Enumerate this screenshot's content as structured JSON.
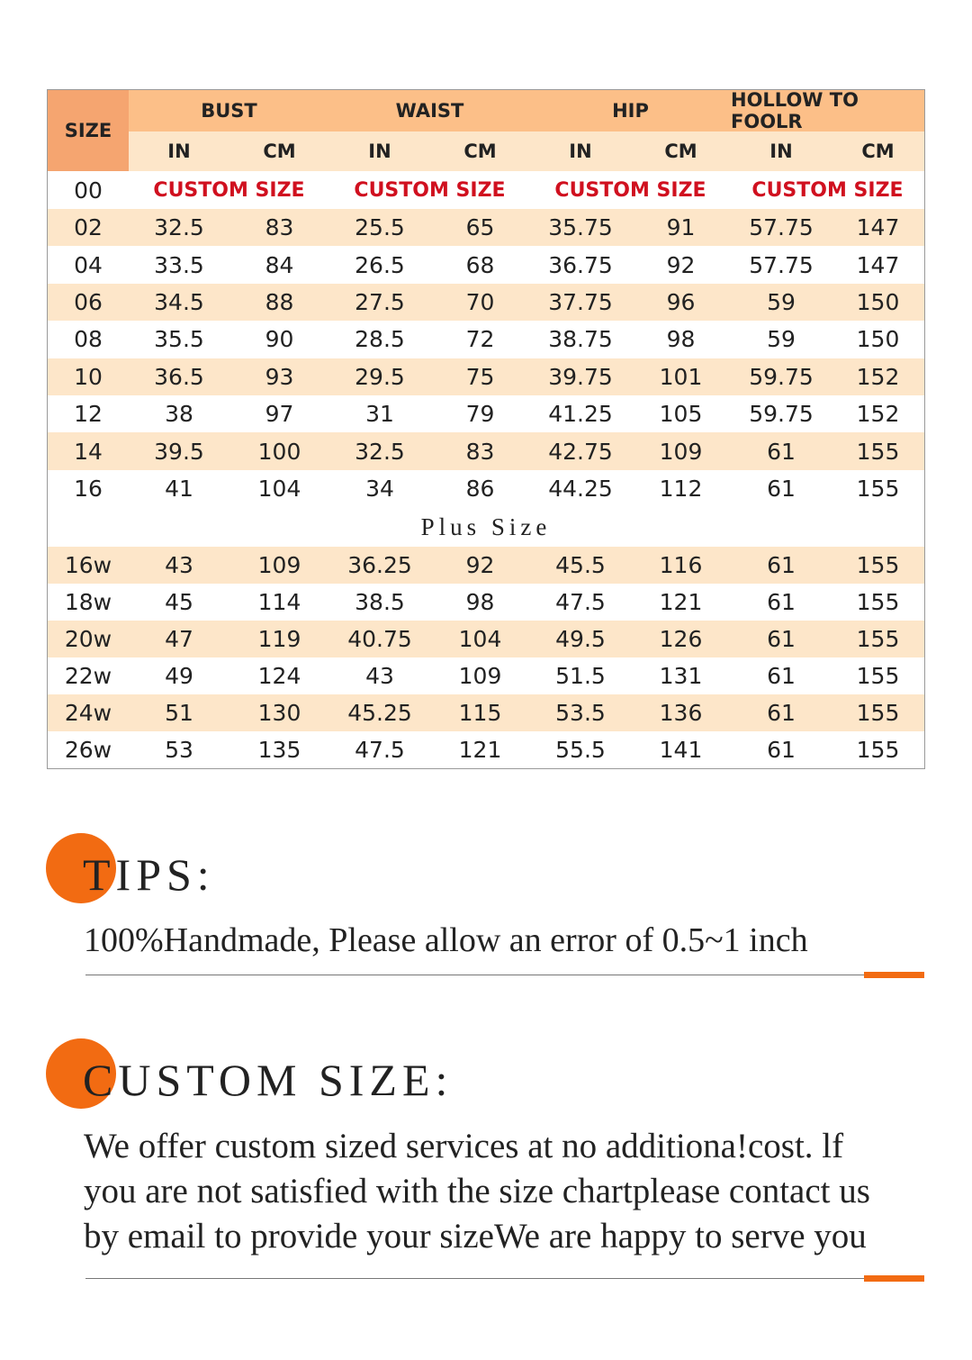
{
  "table": {
    "size_header": "SIZE",
    "group_headers": [
      "BUST",
      "WAIST",
      "HIP",
      "HOLLOW TO FOOLR"
    ],
    "sub_headers": [
      "IN",
      "CM",
      "IN",
      "CM",
      "IN",
      "CM",
      "IN",
      "CM"
    ],
    "custom_row": {
      "size": "00",
      "cells": [
        "CUSTOM SIZE",
        "CUSTOM SIZE",
        "CUSTOM SIZE",
        "CUSTOM SIZE"
      ]
    },
    "regular_rows": [
      [
        "02",
        "32.5",
        "83",
        "25.5",
        "65",
        "35.75",
        "91",
        "57.75",
        "147"
      ],
      [
        "04",
        "33.5",
        "84",
        "26.5",
        "68",
        "36.75",
        "92",
        "57.75",
        "147"
      ],
      [
        "06",
        "34.5",
        "88",
        "27.5",
        "70",
        "37.75",
        "96",
        "59",
        "150"
      ],
      [
        "08",
        "35.5",
        "90",
        "28.5",
        "72",
        "38.75",
        "98",
        "59",
        "150"
      ],
      [
        "10",
        "36.5",
        "93",
        "29.5",
        "75",
        "39.75",
        "101",
        "59.75",
        "152"
      ],
      [
        "12",
        "38",
        "97",
        "31",
        "79",
        "41.25",
        "105",
        "59.75",
        "152"
      ],
      [
        "14",
        "39.5",
        "100",
        "32.5",
        "83",
        "42.75",
        "109",
        "61",
        "155"
      ],
      [
        "16",
        "41",
        "104",
        "34",
        "86",
        "44.25",
        "112",
        "61",
        "155"
      ]
    ],
    "plus_divider": "Plus Size",
    "plus_rows": [
      [
        "16w",
        "43",
        "109",
        "36.25",
        "92",
        "45.5",
        "116",
        "61",
        "155"
      ],
      [
        "18w",
        "45",
        "114",
        "38.5",
        "98",
        "47.5",
        "121",
        "61",
        "155"
      ],
      [
        "20w",
        "47",
        "119",
        "40.75",
        "104",
        "49.5",
        "126",
        "61",
        "155"
      ],
      [
        "22w",
        "49",
        "124",
        "43",
        "109",
        "51.5",
        "131",
        "61",
        "155"
      ],
      [
        "24w",
        "51",
        "130",
        "45.25",
        "115",
        "53.5",
        "136",
        "61",
        "155"
      ],
      [
        "26w",
        "53",
        "135",
        "47.5",
        "121",
        "55.5",
        "141",
        "61",
        "155"
      ]
    ]
  },
  "tips": {
    "title": "TIPS:",
    "text": "100%Handmade, Please allow an error of 0.5~1 inch"
  },
  "custom_size": {
    "title": "CUSTOM SIZE:",
    "lines": [
      "We offer custom sized services at no additiona!cost. lf",
      "you are not satisfied with the size chartplease contact us",
      "by email to provide your sizeWe are happy to serve you"
    ]
  }
}
